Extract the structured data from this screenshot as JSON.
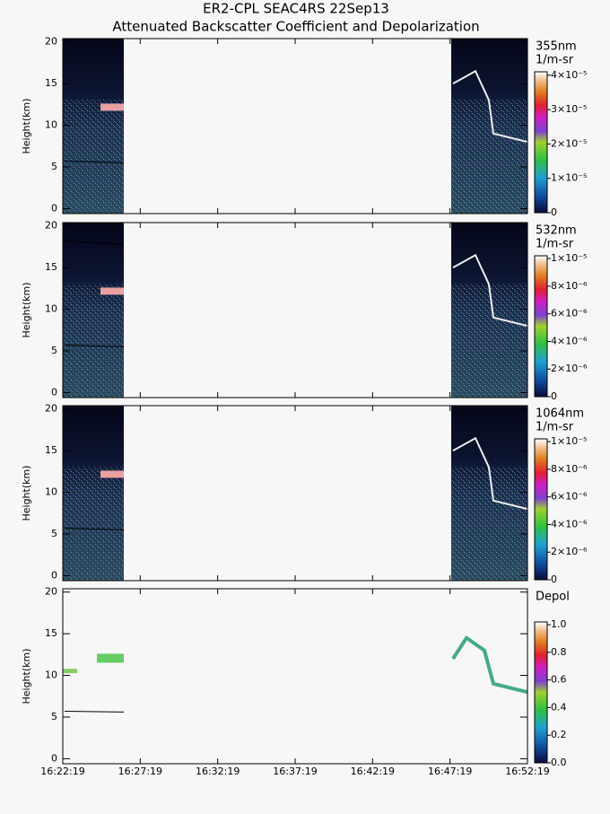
{
  "chart_data": {
    "type": "heatmap",
    "title": "ER2-CPL SEAC4RS 22Sep13",
    "subtitle": "Attenuated Backscatter Coefficient and Depolarization",
    "xlim": [
      58939,
      60739
    ],
    "xticks": [
      {
        "value": 58939,
        "label": "16:22:19"
      },
      {
        "value": 59239,
        "label": "16:27:19"
      },
      {
        "value": 59539,
        "label": "16:32:19"
      },
      {
        "value": 59839,
        "label": "16:37:19"
      },
      {
        "value": 60139,
        "label": "16:42:19"
      },
      {
        "value": 60439,
        "label": "16:47:19"
      },
      {
        "value": 60739,
        "label": "16:52:19"
      }
    ],
    "panels": [
      {
        "y_label": "Height(km)",
        "ylim": [
          -0.6,
          20.4
        ],
        "yticks": [
          0,
          5,
          10,
          15,
          20
        ],
        "colorbar_label": "355nm",
        "colorbar_unit": "1/m-sr",
        "clim": [
          0,
          4.1e-05
        ],
        "cticks": [
          0,
          {
            "value": 1e-05,
            "label": "1×10⁻⁵"
          },
          {
            "value": 2e-05,
            "label": "2×10⁻⁵"
          },
          {
            "value": 3e-05,
            "label": "3×10⁻⁵"
          },
          {
            "value": 4e-05,
            "label": "4×10⁻⁵"
          }
        ]
      },
      {
        "y_label": "Height(km)",
        "ylim": [
          -0.6,
          20.4
        ],
        "yticks": [
          0,
          5,
          10,
          15,
          20
        ],
        "colorbar_label": "532nm",
        "colorbar_unit": "1/m-sr",
        "clim": [
          0,
          1.02e-05
        ],
        "cticks": [
          0,
          {
            "value": 2e-06,
            "label": "2×10⁻⁶"
          },
          {
            "value": 4e-06,
            "label": "4×10⁻⁶"
          },
          {
            "value": 6e-06,
            "label": "6×10⁻⁶"
          },
          {
            "value": 8e-06,
            "label": "8×10⁻⁶"
          },
          {
            "value": 1e-05,
            "label": "1×10⁻⁵"
          }
        ]
      },
      {
        "y_label": "Height(km)",
        "ylim": [
          -0.6,
          20.4
        ],
        "yticks": [
          0,
          5,
          10,
          15,
          20
        ],
        "colorbar_label": "1064nm",
        "colorbar_unit": "1/m-sr",
        "clim": [
          0,
          1.02e-05
        ],
        "cticks": [
          0,
          {
            "value": 2e-06,
            "label": "2×10⁻⁶"
          },
          {
            "value": 4e-06,
            "label": "4×10⁻⁶"
          },
          {
            "value": 6e-06,
            "label": "6×10⁻⁶"
          },
          {
            "value": 8e-06,
            "label": "8×10⁻⁶"
          },
          {
            "value": 1e-05,
            "label": "1×10⁻⁵"
          }
        ]
      },
      {
        "y_label": "Height(km)",
        "ylim": [
          -0.6,
          20.4
        ],
        "yticks": [
          0,
          5,
          10,
          15,
          20
        ],
        "colorbar_label": "Depol",
        "clim": [
          0,
          1.02
        ],
        "cticks": [
          {
            "value": 0,
            "label": "0.0"
          },
          {
            "value": 0.2,
            "label": "0.2"
          },
          {
            "value": 0.4,
            "label": "0.4"
          },
          {
            "value": 0.6,
            "label": "0.6"
          },
          {
            "value": 0.8,
            "label": "0.8"
          },
          {
            "value": 1,
            "label": "1.0"
          }
        ]
      }
    ]
  }
}
